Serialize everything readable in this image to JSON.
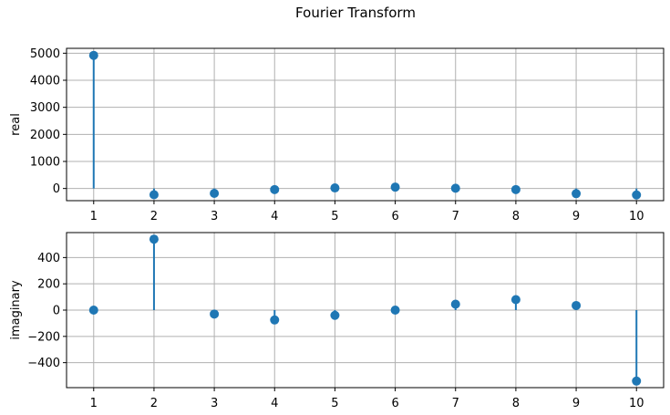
{
  "chart_data": {
    "title": "Fourier Transform",
    "type": "stem",
    "colors": {
      "series": "#1f77b4",
      "grid": "#b0b0b0"
    },
    "subplots": [
      {
        "type": "stem",
        "ylabel": "real",
        "x": [
          1,
          2,
          3,
          4,
          5,
          6,
          7,
          8,
          9,
          10
        ],
        "y": [
          4920,
          -230,
          -180,
          -40,
          20,
          50,
          10,
          -40,
          -190,
          -240
        ],
        "xlim": [
          0.55,
          10.45
        ],
        "ylim": [
          -450,
          5180
        ],
        "xticks": [
          1,
          2,
          3,
          4,
          5,
          6,
          7,
          8,
          9,
          10
        ],
        "yticks": [
          0,
          1000,
          2000,
          3000,
          4000,
          5000
        ],
        "yticklabels": [
          "0",
          "1000",
          "2000",
          "3000",
          "4000",
          "5000"
        ],
        "grid": true
      },
      {
        "type": "stem",
        "ylabel": "imaginary",
        "x": [
          1,
          2,
          3,
          4,
          5,
          6,
          7,
          8,
          9,
          10
        ],
        "y": [
          0,
          540,
          -30,
          -75,
          -40,
          0,
          45,
          80,
          35,
          -540
        ],
        "xlim": [
          0.55,
          10.45
        ],
        "ylim": [
          -590,
          590
        ],
        "xticks": [
          1,
          2,
          3,
          4,
          5,
          6,
          7,
          8,
          9,
          10
        ],
        "yticks": [
          -400,
          -200,
          0,
          200,
          400
        ],
        "yticklabels": [
          "−400",
          "−200",
          "0",
          "200",
          "400"
        ],
        "grid": true
      }
    ]
  }
}
